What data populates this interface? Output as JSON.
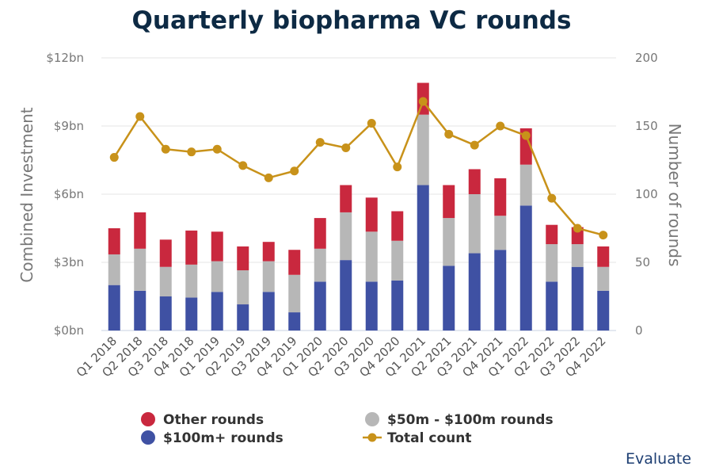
{
  "chart_data": {
    "type": "bar",
    "title": "Quarterly biopharma VC rounds",
    "ylabel": "Combined Investment",
    "y2label": "Number of rounds",
    "ylim": [
      0,
      12
    ],
    "y2lim": [
      0,
      200
    ],
    "yticks": [
      "$0bn",
      "$3bn",
      "$6bn",
      "$9bn",
      "$12bn"
    ],
    "y2ticks": [
      "0",
      "50",
      "100",
      "150",
      "200"
    ],
    "categories": [
      "Q1 2018",
      "Q2 2018",
      "Q3 2018",
      "Q4 2018",
      "Q1 2019",
      "Q2 2019",
      "Q3 2019",
      "Q4 2019",
      "Q1 2020",
      "Q2 2020",
      "Q3 2020",
      "Q4 2020",
      "Q1 2021",
      "Q2 2021",
      "Q3 2021",
      "Q4 2021",
      "Q1 2022",
      "Q2 2022",
      "Q3 2022",
      "Q4 2022"
    ],
    "stacked": true,
    "grid": true,
    "legend_position": "bottom",
    "series": [
      {
        "name": "$100m+ rounds",
        "color": "#3f51a3",
        "axis": "left",
        "values": [
          2.0,
          1.75,
          1.5,
          1.45,
          1.7,
          1.15,
          1.7,
          0.8,
          2.15,
          3.1,
          2.15,
          2.2,
          6.4,
          2.85,
          3.4,
          3.55,
          5.5,
          2.15,
          2.8,
          1.75
        ]
      },
      {
        "name": "$50m - $100m rounds",
        "color": "#b7b7b7",
        "axis": "left",
        "values": [
          1.35,
          1.85,
          1.3,
          1.45,
          1.35,
          1.5,
          1.35,
          1.65,
          1.45,
          2.1,
          2.2,
          1.75,
          3.1,
          2.1,
          2.6,
          1.5,
          1.8,
          1.65,
          1.0,
          1.05
        ]
      },
      {
        "name": "Other rounds",
        "color": "#c9283e",
        "axis": "left",
        "values": [
          1.15,
          1.6,
          1.2,
          1.5,
          1.3,
          1.05,
          0.85,
          1.1,
          1.35,
          1.2,
          1.5,
          1.3,
          1.4,
          1.45,
          1.1,
          1.65,
          1.6,
          0.85,
          0.75,
          0.9
        ]
      },
      {
        "name": "Total count",
        "color": "#c8921a",
        "axis": "right",
        "type": "line",
        "values": [
          127,
          157,
          133,
          131,
          133,
          121,
          112,
          117,
          138,
          134,
          152,
          120,
          168,
          144,
          136,
          150,
          143,
          97,
          75,
          70
        ]
      }
    ],
    "brand": "Evaluate"
  }
}
